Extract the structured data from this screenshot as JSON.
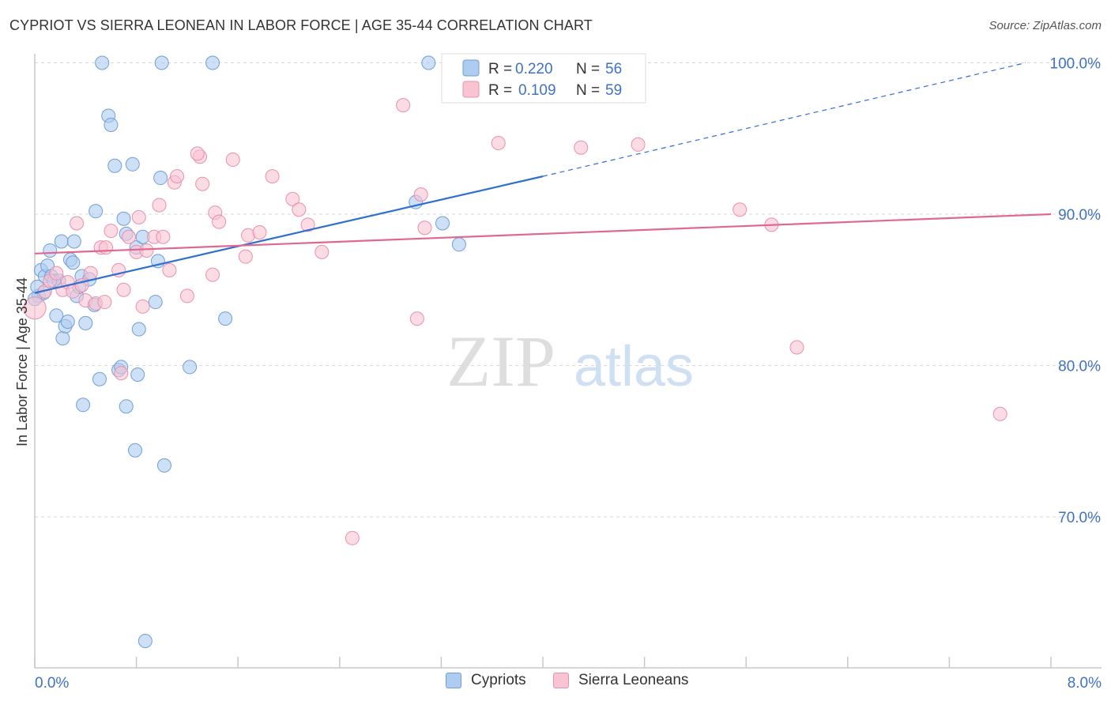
{
  "title": "CYPRIOT VS SIERRA LEONEAN IN LABOR FORCE | AGE 35-44 CORRELATION CHART",
  "source": "Source: ZipAtlas.com",
  "watermark": {
    "zip": "ZIP",
    "atlas": "atlas"
  },
  "colors": {
    "cypriot_fill": "#aecbf0",
    "cypriot_stroke": "#6f9fd8",
    "cypriot_line": "#2f6fd0",
    "sierra_fill": "#f8c3d2",
    "sierra_stroke": "#e891ab",
    "sierra_line": "#e06890",
    "axis_text": "#3f72c4",
    "grid": "#d8d8d8"
  },
  "legend_top": {
    "rows": [
      {
        "r_label": "R =",
        "r_value": "0.220",
        "n_label": "N =",
        "n_value": "56"
      },
      {
        "r_label": "R =",
        "r_value": "0.109",
        "n_label": "N =",
        "n_value": "59"
      }
    ]
  },
  "legend_bottom": [
    "Cypriots",
    "Sierra Leoneans"
  ],
  "chart_data": {
    "type": "scatter",
    "title": "CYPRIOT VS SIERRA LEONEAN IN LABOR FORCE | AGE 35-44 CORRELATION CHART",
    "xlabel": "",
    "ylabel": "In Labor Force | Age 35-44",
    "xlim": [
      0,
      8
    ],
    "ylim": [
      60,
      102
    ],
    "x_tick_labels": [
      "0.0%",
      "8.0%"
    ],
    "y_ticks": [
      70,
      80,
      90,
      100
    ],
    "y_tick_labels": [
      "70.0%",
      "80.0%",
      "90.0%",
      "100.0%"
    ],
    "grid": true,
    "legend_position": "top-center",
    "series": [
      {
        "name": "Cypriots",
        "r": 0.22,
        "n": 56,
        "trend": {
          "x0": 0.0,
          "y0": 84.8,
          "x1": 4.0,
          "y1": 92.5,
          "dashed_to_x": 7.8,
          "dashed_to_y": 100.0
        },
        "points": [
          [
            0.03,
            84.6
          ],
          [
            0.05,
            86.3
          ],
          [
            0.07,
            84.8
          ],
          [
            0.08,
            85.9
          ],
          [
            0.1,
            86.6
          ],
          [
            0.12,
            87.6
          ],
          [
            0.13,
            85.9
          ],
          [
            0.15,
            85.6
          ],
          [
            0.17,
            83.3
          ],
          [
            0.19,
            85.6
          ],
          [
            0.21,
            88.2
          ],
          [
            0.22,
            81.8
          ],
          [
            0.24,
            82.6
          ],
          [
            0.26,
            82.9
          ],
          [
            0.28,
            87.0
          ],
          [
            0.3,
            86.8
          ],
          [
            0.31,
            88.2
          ],
          [
            0.33,
            84.6
          ],
          [
            0.35,
            85.2
          ],
          [
            0.37,
            85.9
          ],
          [
            0.38,
            77.4
          ],
          [
            0.4,
            82.8
          ],
          [
            0.43,
            85.7
          ],
          [
            0.47,
            84.0
          ],
          [
            0.48,
            90.2
          ],
          [
            0.51,
            79.1
          ],
          [
            0.53,
            100.0
          ],
          [
            0.58,
            96.5
          ],
          [
            0.6,
            95.9
          ],
          [
            0.63,
            93.2
          ],
          [
            0.66,
            79.7
          ],
          [
            0.68,
            79.9
          ],
          [
            0.7,
            89.7
          ],
          [
            0.72,
            77.3
          ],
          [
            0.72,
            88.7
          ],
          [
            0.77,
            93.3
          ],
          [
            0.79,
            74.4
          ],
          [
            0.8,
            87.8
          ],
          [
            0.81,
            79.4
          ],
          [
            0.82,
            82.4
          ],
          [
            0.85,
            88.5
          ],
          [
            0.95,
            84.2
          ],
          [
            0.97,
            86.9
          ],
          [
            0.99,
            92.4
          ],
          [
            1.0,
            100.0
          ],
          [
            1.02,
            73.4
          ],
          [
            1.22,
            79.9
          ],
          [
            1.4,
            100.0
          ],
          [
            1.5,
            83.1
          ],
          [
            3.0,
            90.8
          ],
          [
            3.1,
            100.0
          ],
          [
            3.21,
            89.4
          ],
          [
            3.34,
            88.0
          ],
          [
            0.87,
            61.8
          ],
          [
            0.0,
            84.4
          ],
          [
            0.02,
            85.2
          ]
        ]
      },
      {
        "name": "Sierra Leoneans",
        "r": 0.109,
        "n": 59,
        "trend": {
          "x0": 0.0,
          "y0": 87.4,
          "x1": 8.0,
          "y1": 90.0
        },
        "points": [
          [
            0.0,
            83.8
          ],
          [
            0.08,
            84.9
          ],
          [
            0.12,
            85.6
          ],
          [
            0.17,
            86.1
          ],
          [
            0.22,
            85.0
          ],
          [
            0.26,
            85.5
          ],
          [
            0.3,
            84.9
          ],
          [
            0.33,
            89.4
          ],
          [
            0.37,
            85.3
          ],
          [
            0.4,
            84.3
          ],
          [
            0.44,
            86.1
          ],
          [
            0.48,
            84.1
          ],
          [
            0.52,
            87.8
          ],
          [
            0.56,
            87.8
          ],
          [
            0.6,
            88.9
          ],
          [
            0.66,
            86.3
          ],
          [
            0.68,
            79.5
          ],
          [
            0.7,
            85.0
          ],
          [
            0.74,
            88.5
          ],
          [
            0.8,
            87.5
          ],
          [
            0.82,
            89.8
          ],
          [
            0.85,
            83.9
          ],
          [
            0.88,
            87.6
          ],
          [
            0.94,
            88.5
          ],
          [
            0.98,
            90.6
          ],
          [
            1.01,
            88.5
          ],
          [
            1.06,
            86.3
          ],
          [
            1.1,
            92.1
          ],
          [
            1.12,
            92.5
          ],
          [
            1.2,
            84.6
          ],
          [
            1.3,
            93.8
          ],
          [
            1.28,
            94.0
          ],
          [
            1.32,
            92.0
          ],
          [
            1.4,
            86.0
          ],
          [
            1.42,
            90.1
          ],
          [
            1.45,
            89.5
          ],
          [
            1.56,
            93.6
          ],
          [
            1.66,
            87.2
          ],
          [
            1.68,
            88.6
          ],
          [
            1.77,
            88.8
          ],
          [
            1.87,
            92.5
          ],
          [
            2.03,
            91.0
          ],
          [
            2.08,
            90.3
          ],
          [
            2.15,
            89.3
          ],
          [
            2.26,
            87.5
          ],
          [
            2.5,
            68.6
          ],
          [
            2.9,
            97.2
          ],
          [
            3.01,
            83.1
          ],
          [
            3.04,
            91.3
          ],
          [
            3.07,
            89.1
          ],
          [
            3.65,
            94.7
          ],
          [
            4.3,
            94.4
          ],
          [
            4.4,
            100.0
          ],
          [
            4.75,
            94.6
          ],
          [
            5.55,
            90.3
          ],
          [
            5.8,
            89.3
          ],
          [
            6.0,
            81.2
          ],
          [
            7.6,
            76.8
          ],
          [
            0.55,
            84.2
          ]
        ]
      }
    ]
  }
}
